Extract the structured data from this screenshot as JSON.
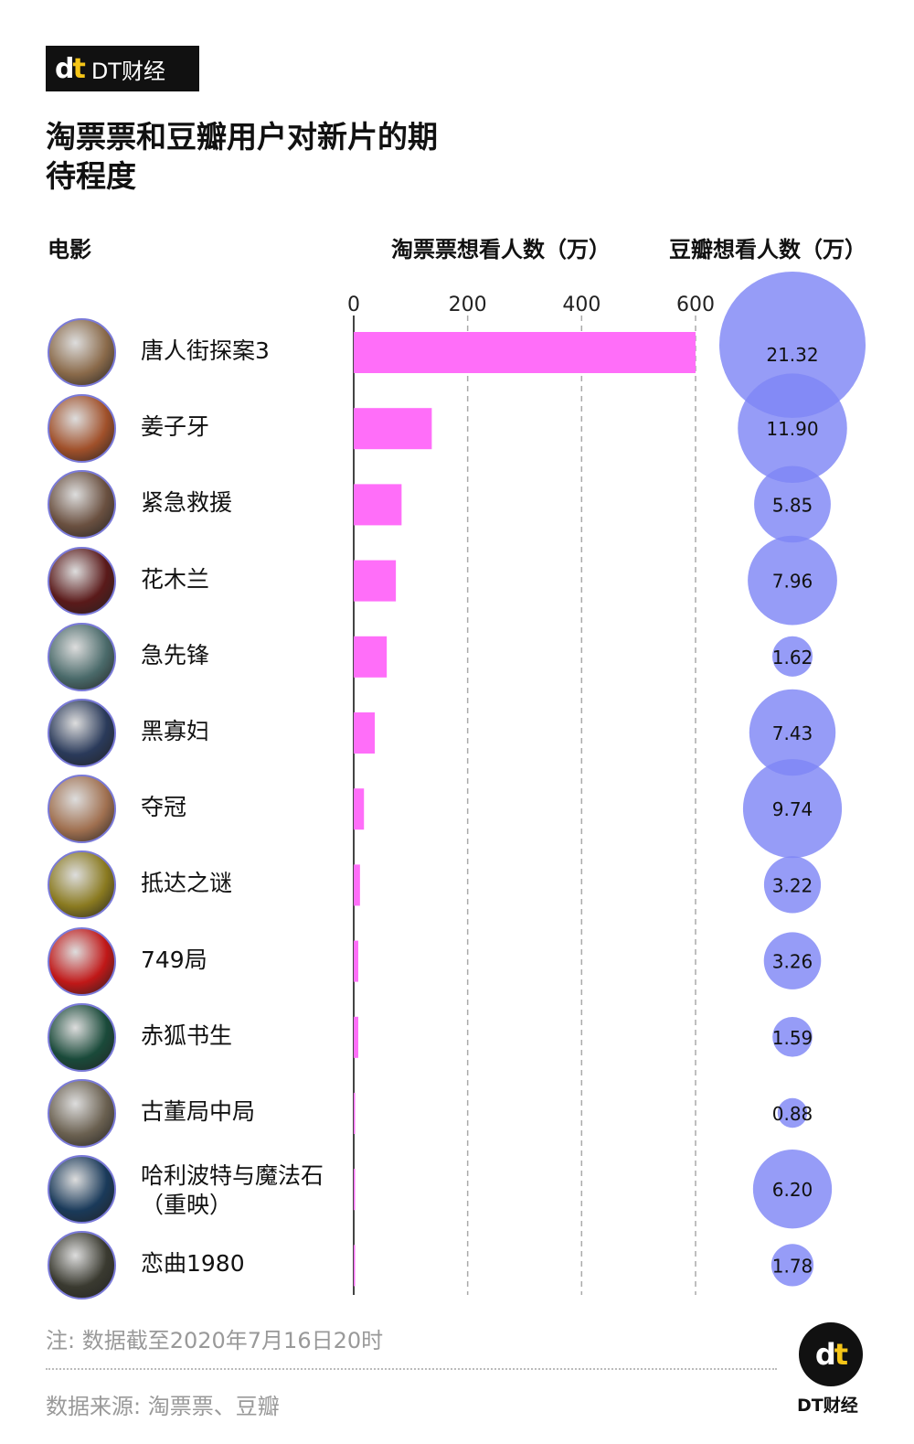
{
  "brand": {
    "mark": "dt",
    "name": "DT财经"
  },
  "title": "淘票票和豆瓣用户对新片的期待程度",
  "headers": {
    "movie": "电影",
    "taopiaopiao": "淘票票想看人数（万）",
    "douban": "豆瓣想看人数（万）"
  },
  "chart_data": {
    "type": "bar",
    "title": "淘票票和豆瓣用户对新片的期待程度",
    "xlim": [
      0,
      600
    ],
    "xticks": [
      "0",
      "200",
      "400",
      "600"
    ],
    "grid": true,
    "categories": [
      "唐人街探案3",
      "姜子牙",
      "紧急救援",
      "花木兰",
      "急先锋",
      "黑寡妇",
      "夺冠",
      "抵达之谜",
      "749局",
      "赤狐书生",
      "古董局中局",
      "哈利波特与魔法石（重映）",
      "恋曲1980"
    ],
    "series": [
      {
        "name": "淘票票想看人数（万）",
        "chart": "bar",
        "color": "#ff6ef9",
        "values": [
          600,
          137,
          84,
          74,
          58,
          37,
          18,
          11,
          8,
          8,
          2,
          2,
          2
        ]
      },
      {
        "name": "豆瓣想看人数（万）",
        "chart": "bubble",
        "color": "#7f86f5",
        "values": [
          21.32,
          11.9,
          5.85,
          7.96,
          1.62,
          7.43,
          9.74,
          3.22,
          3.26,
          1.59,
          0.88,
          6.2,
          1.78
        ],
        "labels": [
          "21.32",
          "11.90",
          "5.85",
          "7.96",
          "1.62",
          "7.43",
          "9.74",
          "3.22",
          "3.26",
          "1.59",
          "0.88",
          "6.20",
          "1.78"
        ]
      }
    ]
  },
  "avatar_colors": [
    "#8a6a4a",
    "#a0502a",
    "#6a5040",
    "#5a1a1a",
    "#4a6a6a",
    "#2a3a5a",
    "#a07050",
    "#8a7a20",
    "#c01818",
    "#1a4a3a",
    "#6a6050",
    "#1a3a5a",
    "#3a3a30"
  ],
  "footer": {
    "note": "注: 数据截至2020年7月16日20时",
    "source": "数据来源: 淘票票、豆瓣"
  }
}
